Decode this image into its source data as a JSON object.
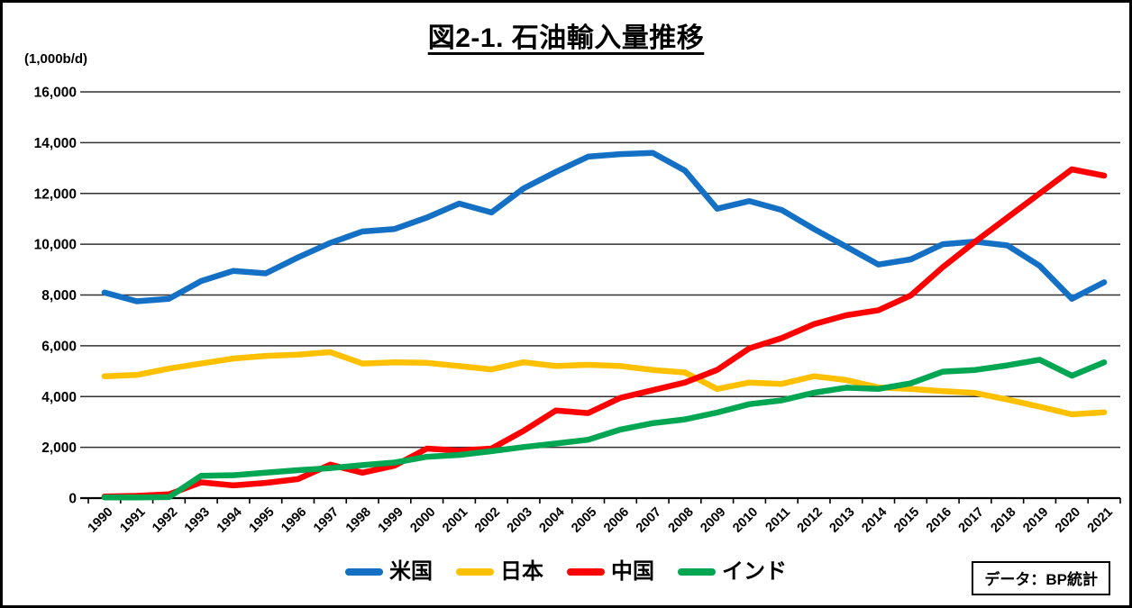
{
  "title": "図2-1. 石油輸入量推移",
  "unit_label": "(1,000b/d)",
  "source_label": "データ：BP統計",
  "chart_data": {
    "type": "line",
    "title": "図2-1. 石油輸入量推移",
    "ylabel": "(1,000b/d)",
    "xlabel": "",
    "ylim": [
      0,
      16000
    ],
    "y_tick_step": 2000,
    "y_tick_labels": [
      "0",
      "2,000",
      "4,000",
      "6,000",
      "8,000",
      "10,000",
      "12,000",
      "14,000",
      "16,000"
    ],
    "grid": "horizontal",
    "legend_position": "bottom",
    "x": [
      1990,
      1991,
      1992,
      1993,
      1994,
      1995,
      1996,
      1997,
      1998,
      1999,
      2000,
      2001,
      2002,
      2003,
      2004,
      2005,
      2006,
      2007,
      2008,
      2009,
      2010,
      2011,
      2012,
      2013,
      2014,
      2015,
      2016,
      2017,
      2018,
      2019,
      2020,
      2021
    ],
    "series": [
      {
        "name": "米国",
        "key": "usa",
        "color": "#1470C4",
        "values": [
          8100,
          7750,
          7850,
          8550,
          8950,
          8850,
          9480,
          10050,
          10500,
          10600,
          11050,
          11600,
          11250,
          12200,
          12850,
          13450,
          13550,
          13600,
          12900,
          11400,
          11700,
          11350,
          10600,
          9900,
          9200,
          9400,
          10000,
          10100,
          9950,
          9150,
          7850,
          8500
        ]
      },
      {
        "name": "日本",
        "key": "japan",
        "color": "#FFC000",
        "values": [
          4800,
          4850,
          5100,
          5300,
          5500,
          5600,
          5650,
          5750,
          5300,
          5350,
          5330,
          5200,
          5070,
          5350,
          5200,
          5250,
          5200,
          5050,
          4950,
          4300,
          4550,
          4500,
          4800,
          4650,
          4360,
          4300,
          4210,
          4140,
          3880,
          3600,
          3300,
          3380
        ]
      },
      {
        "name": "中国",
        "key": "china",
        "color": "#FF0000",
        "values": [
          60,
          90,
          150,
          620,
          500,
          600,
          750,
          1320,
          1000,
          1280,
          1950,
          1870,
          1950,
          2650,
          3450,
          3350,
          3950,
          4250,
          4550,
          5050,
          5900,
          6300,
          6850,
          7200,
          7400,
          7980,
          9100,
          10100,
          11050,
          12000,
          12950,
          12700
        ]
      },
      {
        "name": "インド",
        "key": "india",
        "color": "#00A651",
        "values": [
          30,
          30,
          40,
          880,
          900,
          1000,
          1100,
          1180,
          1300,
          1400,
          1630,
          1700,
          1850,
          2010,
          2150,
          2300,
          2700,
          2950,
          3100,
          3370,
          3700,
          3850,
          4150,
          4350,
          4300,
          4520,
          4980,
          5050,
          5230,
          5450,
          4820,
          5350
        ]
      }
    ],
    "source": "データ：BP統計"
  }
}
